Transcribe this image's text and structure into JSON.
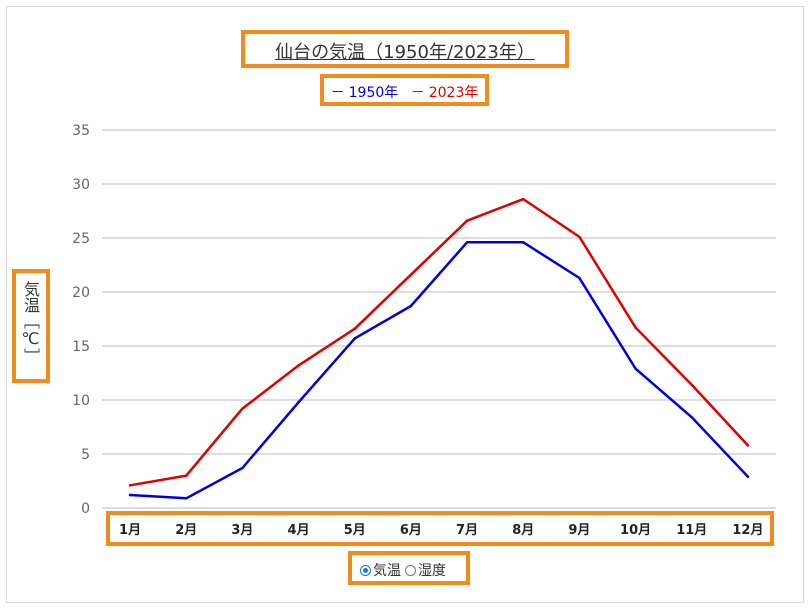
{
  "chart_data": {
    "type": "line",
    "title": "仙台の気温（1950年/2023年）",
    "ylabel": "気温［℃］",
    "xlabel": "",
    "categories": [
      "1月",
      "2月",
      "3月",
      "4月",
      "5月",
      "6月",
      "7月",
      "8月",
      "9月",
      "10月",
      "11月",
      "12月"
    ],
    "yticks": [
      0,
      5,
      10,
      15,
      20,
      25,
      30,
      35
    ],
    "ylim": [
      0,
      35
    ],
    "grid": true,
    "legend_position": "top-center",
    "series": [
      {
        "name": "1950年",
        "color": "#0000dd",
        "values": [
          1.2,
          0.9,
          3.7,
          9.8,
          15.7,
          18.7,
          24.6,
          24.6,
          21.3,
          12.9,
          8.4,
          2.9
        ]
      },
      {
        "name": "2023年",
        "color": "#e00000",
        "values": [
          2.1,
          3.0,
          9.2,
          13.2,
          16.6,
          21.6,
          26.6,
          28.6,
          25.1,
          16.7,
          11.4,
          5.8
        ]
      }
    ]
  },
  "legend": {
    "dash": "－"
  },
  "controls": {
    "radio_options": [
      {
        "label": "気温",
        "selected": true
      },
      {
        "label": "湿度",
        "selected": false
      }
    ]
  },
  "colors": {
    "highlight": "#f28a1e",
    "grid": "#bdbdbd",
    "tick_text": "#666666"
  }
}
